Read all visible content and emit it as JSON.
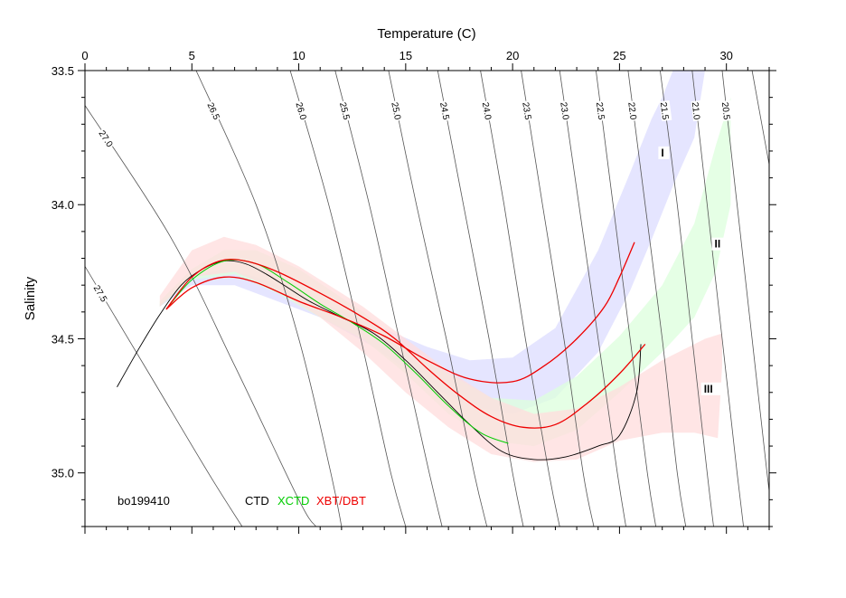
{
  "chart_data": {
    "type": "line",
    "title": "",
    "xlabel": "Temperature (C)",
    "ylabel": "Salinity",
    "xlim": [
      0,
      32
    ],
    "ylim": [
      33.5,
      35.2
    ],
    "y_inverted": true,
    "x_ticks": [
      0,
      5,
      10,
      15,
      20,
      25,
      30
    ],
    "y_ticks": [
      33.5,
      34.0,
      34.5,
      35.0
    ],
    "x_tick_labels": [
      "0",
      "5",
      "10",
      "15",
      "20",
      "25",
      "30"
    ],
    "y_tick_labels": [
      "33.5",
      "34.0",
      "34.5",
      "35.0"
    ],
    "x_axis_position": "top",
    "grid": false,
    "station_label": "bo199410",
    "legend": [
      {
        "label": "CTD",
        "color": "#000000"
      },
      {
        "label": "XCTD",
        "color": "#00cc00"
      },
      {
        "label": "XBT/DBT",
        "color": "#ee0000"
      }
    ],
    "isopycnals": [
      {
        "label": "27.5",
        "points": [
          [
            0,
            34.23
          ],
          [
            3,
            34.63
          ],
          [
            6,
            35.03
          ],
          [
            8,
            35.28
          ]
        ]
      },
      {
        "label": "27.0",
        "points": [
          [
            0,
            33.63
          ],
          [
            4,
            34.12
          ],
          [
            7,
            34.6
          ],
          [
            10,
            35.1
          ],
          [
            10.8,
            35.2
          ]
        ]
      },
      {
        "label": "26.5",
        "points": [
          [
            5.2,
            33.5
          ],
          [
            8,
            34.0
          ],
          [
            10,
            34.5
          ],
          [
            11.5,
            35.0
          ],
          [
            12,
            35.2
          ]
        ]
      },
      {
        "label": "26.0",
        "points": [
          [
            9.6,
            33.5
          ],
          [
            11.4,
            34.0
          ],
          [
            12.9,
            34.5
          ],
          [
            14.3,
            35.0
          ],
          [
            15,
            35.2
          ]
        ]
      },
      {
        "label": "25.5",
        "points": [
          [
            11.7,
            33.5
          ],
          [
            13.3,
            34.0
          ],
          [
            14.7,
            34.5
          ],
          [
            16.1,
            35.0
          ],
          [
            16.7,
            35.2
          ]
        ]
      },
      {
        "label": "25.0",
        "points": [
          [
            14.2,
            33.5
          ],
          [
            15.5,
            34.0
          ],
          [
            16.9,
            34.5
          ],
          [
            18.2,
            35.0
          ],
          [
            18.8,
            35.2
          ]
        ]
      },
      {
        "label": "24.5",
        "points": [
          [
            16.5,
            33.5
          ],
          [
            17.7,
            34.0
          ],
          [
            18.9,
            34.5
          ],
          [
            20.0,
            35.0
          ],
          [
            20.5,
            35.2
          ]
        ]
      },
      {
        "label": "24.0",
        "points": [
          [
            18.5,
            33.5
          ],
          [
            19.6,
            34.0
          ],
          [
            20.6,
            34.5
          ],
          [
            21.7,
            35.0
          ],
          [
            22.2,
            35.2
          ]
        ]
      },
      {
        "label": "23.5",
        "points": [
          [
            20.4,
            33.5
          ],
          [
            21.4,
            34.0
          ],
          [
            22.4,
            34.5
          ],
          [
            23.3,
            35.0
          ],
          [
            23.8,
            35.2
          ]
        ]
      },
      {
        "label": "23.0",
        "points": [
          [
            22.2,
            33.5
          ],
          [
            23.1,
            34.0
          ],
          [
            24.0,
            34.5
          ],
          [
            24.9,
            35.0
          ],
          [
            25.3,
            35.2
          ]
        ]
      },
      {
        "label": "22.5",
        "points": [
          [
            23.9,
            33.5
          ],
          [
            24.7,
            34.0
          ],
          [
            25.5,
            34.5
          ],
          [
            26.3,
            35.0
          ],
          [
            26.7,
            35.2
          ]
        ]
      },
      {
        "label": "22.0",
        "points": [
          [
            25.4,
            33.5
          ],
          [
            26.2,
            34.0
          ],
          [
            27.0,
            34.5
          ],
          [
            27.7,
            35.0
          ],
          [
            28.1,
            35.2
          ]
        ]
      },
      {
        "label": "21.5",
        "points": [
          [
            26.9,
            33.5
          ],
          [
            27.7,
            34.0
          ],
          [
            28.4,
            34.5
          ],
          [
            29.1,
            35.0
          ],
          [
            29.4,
            35.2
          ]
        ]
      },
      {
        "label": "21.0",
        "points": [
          [
            28.4,
            33.5
          ],
          [
            29.1,
            34.0
          ],
          [
            29.8,
            34.5
          ],
          [
            30.5,
            35.0
          ],
          [
            30.8,
            35.2
          ]
        ]
      },
      {
        "label": "20.5",
        "points": [
          [
            29.8,
            33.5
          ],
          [
            30.5,
            34.0
          ],
          [
            31.2,
            34.5
          ],
          [
            31.9,
            35.0
          ],
          [
            32.2,
            35.2
          ]
        ]
      },
      {
        "label": "",
        "points": [
          [
            31.2,
            33.5
          ],
          [
            32.0,
            33.85
          ]
        ]
      }
    ],
    "bands": [
      {
        "name": "I",
        "color": "#dcdcff",
        "upper": [
          [
            3.5,
            34.37
          ],
          [
            5,
            34.27
          ],
          [
            6.5,
            34.24
          ],
          [
            8,
            34.27
          ],
          [
            10,
            34.33
          ],
          [
            13,
            34.43
          ],
          [
            16,
            34.53
          ],
          [
            18,
            34.58
          ],
          [
            20,
            34.57
          ],
          [
            22,
            34.46
          ],
          [
            24,
            34.17
          ],
          [
            25.5,
            33.88
          ],
          [
            26.5,
            33.68
          ],
          [
            27,
            33.6
          ],
          [
            27.5,
            33.5
          ],
          [
            29,
            33.5
          ]
        ],
        "lower": [
          [
            3.5,
            34.38
          ],
          [
            5,
            34.3
          ],
          [
            7,
            34.3
          ],
          [
            9,
            34.36
          ],
          [
            11,
            34.42
          ],
          [
            13.5,
            34.53
          ],
          [
            16,
            34.67
          ],
          [
            18,
            34.75
          ],
          [
            20,
            34.78
          ],
          [
            22,
            34.72
          ],
          [
            24,
            34.55
          ],
          [
            25.5,
            34.32
          ],
          [
            26.5,
            34.13
          ],
          [
            27.5,
            33.93
          ],
          [
            28.5,
            33.75
          ],
          [
            29,
            33.5
          ]
        ]
      },
      {
        "name": "II",
        "color": "#dcffdc",
        "upper": [
          [
            3.5,
            34.36
          ],
          [
            5,
            34.24
          ],
          [
            6.5,
            34.17
          ],
          [
            8,
            34.17
          ],
          [
            10,
            34.24
          ],
          [
            13,
            34.4
          ],
          [
            15,
            34.53
          ],
          [
            17,
            34.63
          ],
          [
            19,
            34.72
          ],
          [
            21,
            34.73
          ],
          [
            23,
            34.64
          ],
          [
            25,
            34.49
          ],
          [
            27,
            34.3
          ],
          [
            28.5,
            34.07
          ],
          [
            29.5,
            33.78
          ],
          [
            30.2,
            33.6
          ],
          [
            30.2,
            33.85
          ]
        ],
        "lower": [
          [
            3.5,
            34.38
          ],
          [
            5,
            34.28
          ],
          [
            7,
            34.26
          ],
          [
            9,
            34.33
          ],
          [
            11,
            34.42
          ],
          [
            13,
            34.5
          ],
          [
            15,
            34.63
          ],
          [
            17,
            34.78
          ],
          [
            19,
            34.88
          ],
          [
            21,
            34.9
          ],
          [
            23,
            34.84
          ],
          [
            25,
            34.7
          ],
          [
            27,
            34.55
          ],
          [
            28.5,
            34.42
          ],
          [
            29.5,
            34.25
          ],
          [
            30.2,
            34.0
          ],
          [
            30.2,
            33.85
          ]
        ]
      },
      {
        "name": "III",
        "color": "#ffdcdc",
        "upper": [
          [
            3.5,
            34.34
          ],
          [
            5,
            34.17
          ],
          [
            6.5,
            34.12
          ],
          [
            8,
            34.15
          ],
          [
            10,
            34.23
          ],
          [
            13,
            34.38
          ],
          [
            15,
            34.5
          ],
          [
            17,
            34.62
          ],
          [
            19,
            34.72
          ],
          [
            21,
            34.78
          ],
          [
            23,
            34.76
          ],
          [
            25,
            34.68
          ],
          [
            27,
            34.58
          ],
          [
            29,
            34.5
          ],
          [
            29.8,
            34.48
          ],
          [
            29.8,
            34.6
          ]
        ],
        "lower": [
          [
            3.5,
            34.38
          ],
          [
            5,
            34.27
          ],
          [
            7,
            34.25
          ],
          [
            9,
            34.32
          ],
          [
            11,
            34.42
          ],
          [
            13,
            34.55
          ],
          [
            15,
            34.7
          ],
          [
            17,
            34.83
          ],
          [
            19,
            34.93
          ],
          [
            21,
            34.96
          ],
          [
            23,
            34.95
          ],
          [
            25,
            34.88
          ],
          [
            27,
            34.85
          ],
          [
            28.5,
            34.85
          ],
          [
            29.6,
            34.87
          ],
          [
            29.8,
            34.6
          ]
        ]
      }
    ],
    "series": [
      {
        "name": "CTD",
        "color": "#000000",
        "points": [
          [
            1.5,
            34.68
          ],
          [
            2.5,
            34.54
          ],
          [
            3.5,
            34.41
          ],
          [
            4.5,
            34.3
          ],
          [
            5.5,
            34.24
          ],
          [
            6.5,
            34.21
          ],
          [
            7.5,
            34.22
          ],
          [
            8.5,
            34.26
          ],
          [
            9.5,
            34.31
          ],
          [
            10.5,
            34.36
          ],
          [
            12,
            34.42
          ],
          [
            13.5,
            34.48
          ],
          [
            15,
            34.58
          ],
          [
            16.5,
            34.7
          ],
          [
            18,
            34.82
          ],
          [
            19.5,
            34.92
          ],
          [
            21,
            34.95
          ],
          [
            22.5,
            34.94
          ],
          [
            24,
            34.9
          ],
          [
            25,
            34.86
          ],
          [
            25.8,
            34.7
          ],
          [
            26,
            34.52
          ]
        ]
      },
      {
        "name": "XCTD",
        "color": "#00cc00",
        "points": [
          [
            3.8,
            34.39
          ],
          [
            5,
            34.28
          ],
          [
            6.5,
            34.21
          ],
          [
            8,
            34.22
          ],
          [
            9.5,
            34.29
          ],
          [
            11,
            34.37
          ],
          [
            12.5,
            34.44
          ],
          [
            14,
            34.52
          ],
          [
            15.5,
            34.63
          ],
          [
            17,
            34.75
          ],
          [
            18.5,
            34.85
          ],
          [
            19.8,
            34.89
          ]
        ]
      },
      {
        "name": "XBT/DBT upper",
        "color": "#ee0000",
        "points": [
          [
            3.8,
            34.39
          ],
          [
            5,
            34.27
          ],
          [
            6.3,
            34.21
          ],
          [
            7.5,
            34.21
          ],
          [
            9,
            34.25
          ],
          [
            11,
            34.33
          ],
          [
            13,
            34.42
          ],
          [
            14.5,
            34.5
          ],
          [
            16,
            34.61
          ],
          [
            17.5,
            34.71
          ],
          [
            19,
            34.79
          ],
          [
            20.5,
            34.83
          ],
          [
            22,
            34.82
          ],
          [
            23.5,
            34.74
          ],
          [
            25,
            34.63
          ],
          [
            26.2,
            34.52
          ]
        ]
      },
      {
        "name": "XBT/DBT lower",
        "color": "#ee0000",
        "points": [
          [
            3.8,
            34.39
          ],
          [
            5,
            34.31
          ],
          [
            6.5,
            34.27
          ],
          [
            8,
            34.29
          ],
          [
            10,
            34.36
          ],
          [
            12,
            34.42
          ],
          [
            14,
            34.49
          ],
          [
            16,
            34.58
          ],
          [
            18,
            34.65
          ],
          [
            20,
            34.66
          ],
          [
            21.5,
            34.6
          ],
          [
            23,
            34.5
          ],
          [
            24.3,
            34.38
          ],
          [
            25,
            34.27
          ],
          [
            25.7,
            34.14
          ]
        ]
      }
    ]
  }
}
